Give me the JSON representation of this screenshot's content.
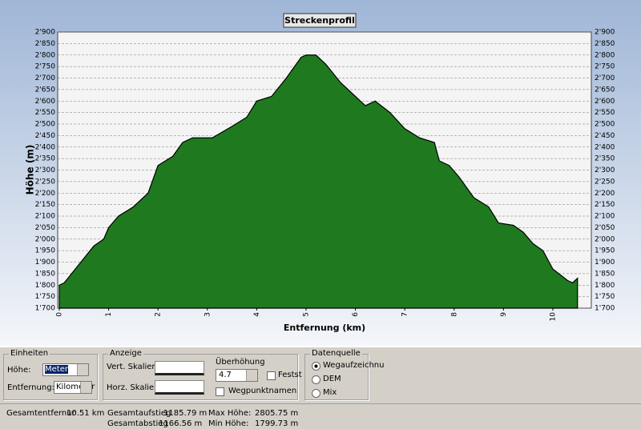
{
  "chart_data": {
    "type": "area",
    "title": "Streckenprofil",
    "x_label": "Entfernung (km)",
    "y_label": "Höhe (m)",
    "color": "#1f7a1f",
    "x": [
      0,
      0.1,
      0.7,
      0.9,
      1.0,
      1.2,
      1.5,
      1.8,
      2.0,
      2.3,
      2.5,
      2.7,
      2.9,
      3.1,
      3.5,
      3.8,
      4.0,
      4.3,
      4.6,
      4.9,
      5.0,
      5.2,
      5.4,
      5.7,
      6.0,
      6.2,
      6.4,
      6.7,
      7.0,
      7.3,
      7.6,
      7.7,
      7.9,
      8.1,
      8.4,
      8.7,
      8.9,
      9.2,
      9.4,
      9.6,
      9.8,
      10.0,
      10.3,
      10.4,
      10.5
    ],
    "values": [
      1800,
      1810,
      1970,
      2000,
      2050,
      2100,
      2140,
      2200,
      2320,
      2360,
      2420,
      2440,
      2440,
      2440,
      2490,
      2530,
      2600,
      2620,
      2700,
      2790,
      2800,
      2800,
      2760,
      2680,
      2620,
      2580,
      2600,
      2550,
      2480,
      2440,
      2420,
      2340,
      2320,
      2270,
      2180,
      2140,
      2070,
      2060,
      2030,
      1980,
      1950,
      1870,
      1820,
      1810,
      1830
    ],
    "xlim": [
      0,
      10.78
    ],
    "xticks": [
      0,
      1,
      2,
      3,
      4,
      5,
      6,
      7,
      8,
      9,
      10
    ],
    "ylim": [
      1700,
      2900
    ],
    "yticks": [
      {
        "value": 1700,
        "label": "1'700"
      },
      {
        "value": 1750,
        "label": "1'750"
      },
      {
        "value": 1800,
        "label": "1'800"
      },
      {
        "value": 1850,
        "label": "1'850"
      },
      {
        "value": 1900,
        "label": "1'900"
      },
      {
        "value": 1950,
        "label": "1'950"
      },
      {
        "value": 2000,
        "label": "2'000"
      },
      {
        "value": 2050,
        "label": "2'050"
      },
      {
        "value": 2100,
        "label": "2'100"
      },
      {
        "value": 2150,
        "label": "2'150"
      },
      {
        "value": 2200,
        "label": "2'200"
      },
      {
        "value": 2250,
        "label": "2'250"
      },
      {
        "value": 2300,
        "label": "2'300"
      },
      {
        "value": 2350,
        "label": "2'350"
      },
      {
        "value": 2400,
        "label": "2'400"
      },
      {
        "value": 2450,
        "label": "2'450"
      },
      {
        "value": 2500,
        "label": "2'500"
      },
      {
        "value": 2550,
        "label": "2'550"
      },
      {
        "value": 2600,
        "label": "2'600"
      },
      {
        "value": 2650,
        "label": "2'650"
      },
      {
        "value": 2700,
        "label": "2'700"
      },
      {
        "value": 2750,
        "label": "2'750"
      },
      {
        "value": 2800,
        "label": "2'800"
      },
      {
        "value": 2850,
        "label": "2'850"
      },
      {
        "value": 2900,
        "label": "2'900"
      }
    ],
    "grid": true
  },
  "ui": {
    "einheiten": {
      "title": "Einheiten",
      "hoehe_label": "Höhe:",
      "hoehe_value": "Meter",
      "entfernung_label": "Entfernung:",
      "entfernung_value": "Kilometer"
    },
    "anzeige": {
      "title": "Anzeige",
      "vert": "Vert. Skalier.",
      "horz": "Horz. Skalier.",
      "ueberhoehung": "Überhöhung",
      "ueberhoehung_value": "4.7",
      "feststellen": "Festst",
      "wegpunktnamen": "Wegpunktnamen"
    },
    "datenquelle": {
      "title": "Datenquelle",
      "options": [
        "Wegaufzeichnu",
        "DEM",
        "Mix"
      ]
    },
    "stats": {
      "distanz_label": "Gesamtentfernur",
      "distanz": "10.51 km",
      "aufstieg_label": "Gesamtaufstieg",
      "aufstieg": "1185.79 m",
      "abstieg_label": "Gesamtabstieg",
      "abstieg": "1166.56 m",
      "max_label": "Max Höhe:",
      "max": "2805.75 m",
      "min_label": "Min Höhe:",
      "min": "1799.73 m"
    }
  }
}
